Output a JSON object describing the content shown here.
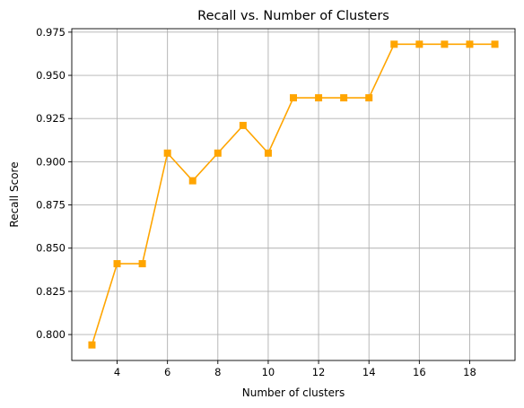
{
  "chart_data": {
    "type": "line",
    "title": "Recall vs. Number of Clusters",
    "xlabel": "Number of clusters",
    "ylabel": "Recall Score",
    "x": [
      3,
      4,
      5,
      6,
      7,
      8,
      9,
      10,
      11,
      12,
      13,
      14,
      15,
      16,
      17,
      18,
      19
    ],
    "series": [
      {
        "values": [
          0.794,
          0.841,
          0.841,
          0.905,
          0.889,
          0.905,
          0.921,
          0.905,
          0.937,
          0.937,
          0.937,
          0.937,
          0.968,
          0.968,
          0.968,
          0.968,
          0.968
        ],
        "color": "#ffa500",
        "marker": "square"
      }
    ],
    "xlim": [
      2.2,
      19.8
    ],
    "ylim": [
      0.785,
      0.977
    ],
    "xticks": [
      4,
      6,
      8,
      10,
      12,
      14,
      16,
      18
    ],
    "xtick_labels": [
      "4",
      "6",
      "8",
      "10",
      "12",
      "14",
      "16",
      "18"
    ],
    "yticks": [
      0.8,
      0.825,
      0.85,
      0.875,
      0.9,
      0.925,
      0.95,
      0.975
    ],
    "ytick_labels": [
      "0.800",
      "0.825",
      "0.850",
      "0.875",
      "0.900",
      "0.925",
      "0.950",
      "0.975"
    ],
    "grid": true
  }
}
